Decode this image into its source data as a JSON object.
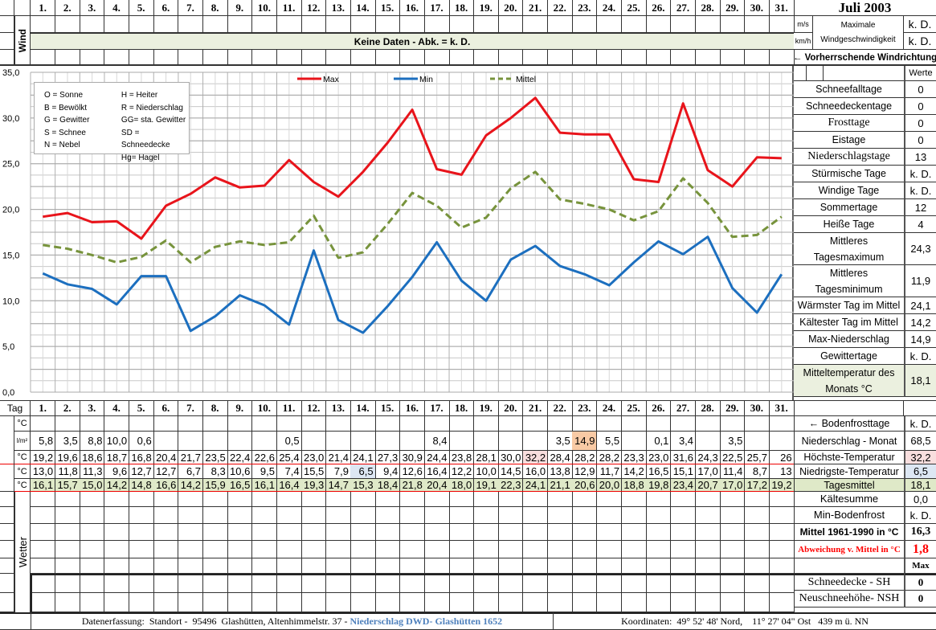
{
  "header": {
    "title": "Juli 2003",
    "days": [
      "1.",
      "2.",
      "3.",
      "4.",
      "5.",
      "6.",
      "7.",
      "8.",
      "9.",
      "10.",
      "11.",
      "12.",
      "13.",
      "14.",
      "15.",
      "16.",
      "17.",
      "18.",
      "19.",
      "20.",
      "21.",
      "22.",
      "23.",
      "24.",
      "25.",
      "26.",
      "27.",
      "28.",
      "29.",
      "30.",
      "31."
    ]
  },
  "wind": {
    "label": "Wind",
    "no_data_banner": "Keine Daten - Abk. = k. D.",
    "unit_ms": "m/s",
    "unit_kmh": "km/h",
    "max_label": "Maximale Windgeschwindigkeit",
    "max_ms": "k. D.",
    "max_kmh": "k. D.",
    "direction_label": "← Vorherrschende Windrichtung"
  },
  "legend_box": {
    "left": [
      "O = Sonne",
      "B = Bewölkt",
      "G = Gewitter",
      "S = Schnee",
      "N = Nebel"
    ],
    "right": [
      "H = Heiter",
      "R = Niederschlag",
      "GG= sta. Gewitter",
      "SD = Schneedecke",
      "Hg= Hagel"
    ]
  },
  "chart_data": {
    "type": "line",
    "title": "Juli 2003",
    "xlabel": "Tag",
    "ylabel": "°C",
    "ylim": [
      0,
      35
    ],
    "yticks": [
      "0,0",
      "5,0",
      "10,0",
      "15,0",
      "20,0",
      "25,0",
      "30,0",
      "35,0"
    ],
    "grid": true,
    "legend_position": "top",
    "x": [
      1,
      2,
      3,
      4,
      5,
      6,
      7,
      8,
      9,
      10,
      11,
      12,
      13,
      14,
      15,
      16,
      17,
      18,
      19,
      20,
      21,
      22,
      23,
      24,
      25,
      26,
      27,
      28,
      29,
      30,
      31
    ],
    "series": [
      {
        "name": "Max",
        "color": "#e8141b",
        "style": "solid",
        "values": [
          19.2,
          19.6,
          18.6,
          18.7,
          16.8,
          20.4,
          21.7,
          23.5,
          22.4,
          22.6,
          25.4,
          23.0,
          21.4,
          24.1,
          27.3,
          30.9,
          24.4,
          23.8,
          28.1,
          30.0,
          32.2,
          28.4,
          28.2,
          28.2,
          23.3,
          23.0,
          31.6,
          24.3,
          22.5,
          25.7,
          25.6
        ]
      },
      {
        "name": "Min",
        "color": "#1c6fbf",
        "style": "solid",
        "values": [
          13.0,
          11.8,
          11.3,
          9.6,
          12.7,
          12.7,
          6.7,
          8.3,
          10.6,
          9.5,
          7.4,
          15.5,
          7.9,
          6.5,
          9.4,
          12.6,
          16.4,
          12.2,
          10.0,
          14.5,
          16.0,
          13.8,
          12.9,
          11.7,
          14.2,
          16.5,
          15.1,
          17.0,
          11.4,
          8.7,
          12.9
        ]
      },
      {
        "name": "Mittel",
        "color": "#77933c",
        "style": "dashed",
        "values": [
          16.1,
          15.7,
          15.0,
          14.2,
          14.8,
          16.6,
          14.2,
          15.9,
          16.5,
          16.1,
          16.4,
          19.3,
          14.7,
          15.3,
          18.4,
          21.8,
          20.4,
          18.0,
          19.1,
          22.3,
          24.1,
          21.1,
          20.6,
          20.0,
          18.8,
          19.8,
          23.4,
          20.7,
          17.0,
          17.2,
          19.2
        ]
      }
    ]
  },
  "stats": {
    "werte_label": "Werte",
    "rows": [
      {
        "label": "Schneefalltage",
        "value": "0"
      },
      {
        "label": "Schneedeckentage",
        "value": "0"
      },
      {
        "label": "Frosttage",
        "value": "0"
      },
      {
        "label": "Eistage",
        "value": "0"
      },
      {
        "label": "Niederschlagstage",
        "value": "13"
      },
      {
        "label": "Stürmische Tage",
        "value": "k. D."
      },
      {
        "label": "Windige Tage",
        "value": "k. D."
      },
      {
        "label": "Sommertage",
        "value": "12"
      },
      {
        "label": "Heiße Tage",
        "value": "4"
      },
      {
        "label": "Mittleres Tagesmaximum",
        "value": "24,3"
      },
      {
        "label": "Mittleres Tagesminimum",
        "value": "11,9"
      },
      {
        "label": "Wärmster Tag im Mittel",
        "value": "24,1"
      },
      {
        "label": "Kältester Tag im Mittel",
        "value": "14,2"
      },
      {
        "label": "Max-Niederschlag",
        "value": "14,9"
      },
      {
        "label": "Gewittertage",
        "value": "k. D."
      },
      {
        "label": "Mitteltemperatur des Monats °C",
        "value": "18,1"
      }
    ]
  },
  "table": {
    "tag_label": "Tag",
    "rows": [
      {
        "unit": "°C",
        "values": [
          "",
          "",
          "",
          "",
          "",
          "",
          "",
          "",
          "",
          "",
          "",
          "",
          "",
          "",
          "",
          "",
          "",
          "",
          "",
          "",
          "",
          "",
          "",
          "",
          "",
          "",
          "",
          "",
          "",
          "",
          ""
        ]
      },
      {
        "unit": "l/m²",
        "values": [
          "5,8",
          "3,5",
          "8,8",
          "10,0",
          "0,6",
          "",
          "",
          "",
          "",
          "",
          "0,5",
          "",
          "",
          "",
          "",
          "",
          "8,4",
          "",
          "",
          "",
          "",
          "3,5",
          "14,9",
          "5,5",
          "",
          "0,1",
          "3,4",
          "",
          "3,5",
          "",
          ""
        ]
      },
      {
        "unit": "°C",
        "values": [
          "19,2",
          "19,6",
          "18,6",
          "18,7",
          "16,8",
          "20,4",
          "21,7",
          "23,5",
          "22,4",
          "22,6",
          "25,4",
          "23,0",
          "21,4",
          "24,1",
          "27,3",
          "30,9",
          "24,4",
          "23,8",
          "28,1",
          "30,0",
          "32,2",
          "28,4",
          "28,2",
          "28,2",
          "23,3",
          "23,0",
          "31,6",
          "24,3",
          "22,5",
          "25,7",
          "26"
        ]
      },
      {
        "unit": "°C",
        "values": [
          "13,0",
          "11,8",
          "11,3",
          "9,6",
          "12,7",
          "12,7",
          "6,7",
          "8,3",
          "10,6",
          "9,5",
          "7,4",
          "15,5",
          "7,9",
          "6,5",
          "9,4",
          "12,6",
          "16,4",
          "12,2",
          "10,0",
          "14,5",
          "16,0",
          "13,8",
          "12,9",
          "11,7",
          "14,2",
          "16,5",
          "15,1",
          "17,0",
          "11,4",
          "8,7",
          "13"
        ]
      },
      {
        "unit": "°C",
        "values": [
          "16,1",
          "15,7",
          "15,0",
          "14,2",
          "14,8",
          "16,6",
          "14,2",
          "15,9",
          "16,5",
          "16,1",
          "16,4",
          "19,3",
          "14,7",
          "15,3",
          "18,4",
          "21,8",
          "20,4",
          "18,0",
          "19,1",
          "22,3",
          "24,1",
          "21,1",
          "20,6",
          "20,0",
          "18,8",
          "19,8",
          "23,4",
          "20,7",
          "17,0",
          "17,2",
          "19,2"
        ]
      }
    ],
    "summary": [
      {
        "label": "← Bodenfrosttage",
        "value": "k. D."
      },
      {
        "label": "Niederschlag - Monat",
        "value": "68,5"
      },
      {
        "label": "Höchste-Temperatur",
        "value": "32,2"
      },
      {
        "label": "Niedrigste-Temperatur",
        "value": "6,5"
      },
      {
        "label": "Tagesmittel",
        "value": "18,1"
      },
      {
        "label": "Kältesumme",
        "value": "0,0"
      },
      {
        "label": "Min-Bodenfrost",
        "value": "k. D."
      },
      {
        "label": "Mittel 1961-1990 in °C",
        "value": "16,3"
      },
      {
        "label": "Abweichung v. Mittel in °C",
        "value": "1,8"
      },
      {
        "label": "",
        "value": "Max"
      },
      {
        "label": "Schneedecke -   SH",
        "value": "0"
      },
      {
        "label": "Neuschneehöhe- NSH",
        "value": "0"
      }
    ]
  },
  "weather": {
    "label": "Wetter"
  },
  "footer": {
    "left_text": "Datenerfassung:  Standort -  95496  Glashütten, Altenhimmelstr. 37 - ",
    "left_highlight": "Niederschlag DWD- Glashütten 1652",
    "right_text": "Koordinaten:  49° 52' 48' Nord,    11° 27' 04\" Ost   439 m ü. NN"
  },
  "colors": {
    "max": "#e8141b",
    "min": "#1c6fbf",
    "mittel": "#77933c",
    "highlight_blue": "#4f81bd",
    "abweichung_red": "#ff0000"
  }
}
